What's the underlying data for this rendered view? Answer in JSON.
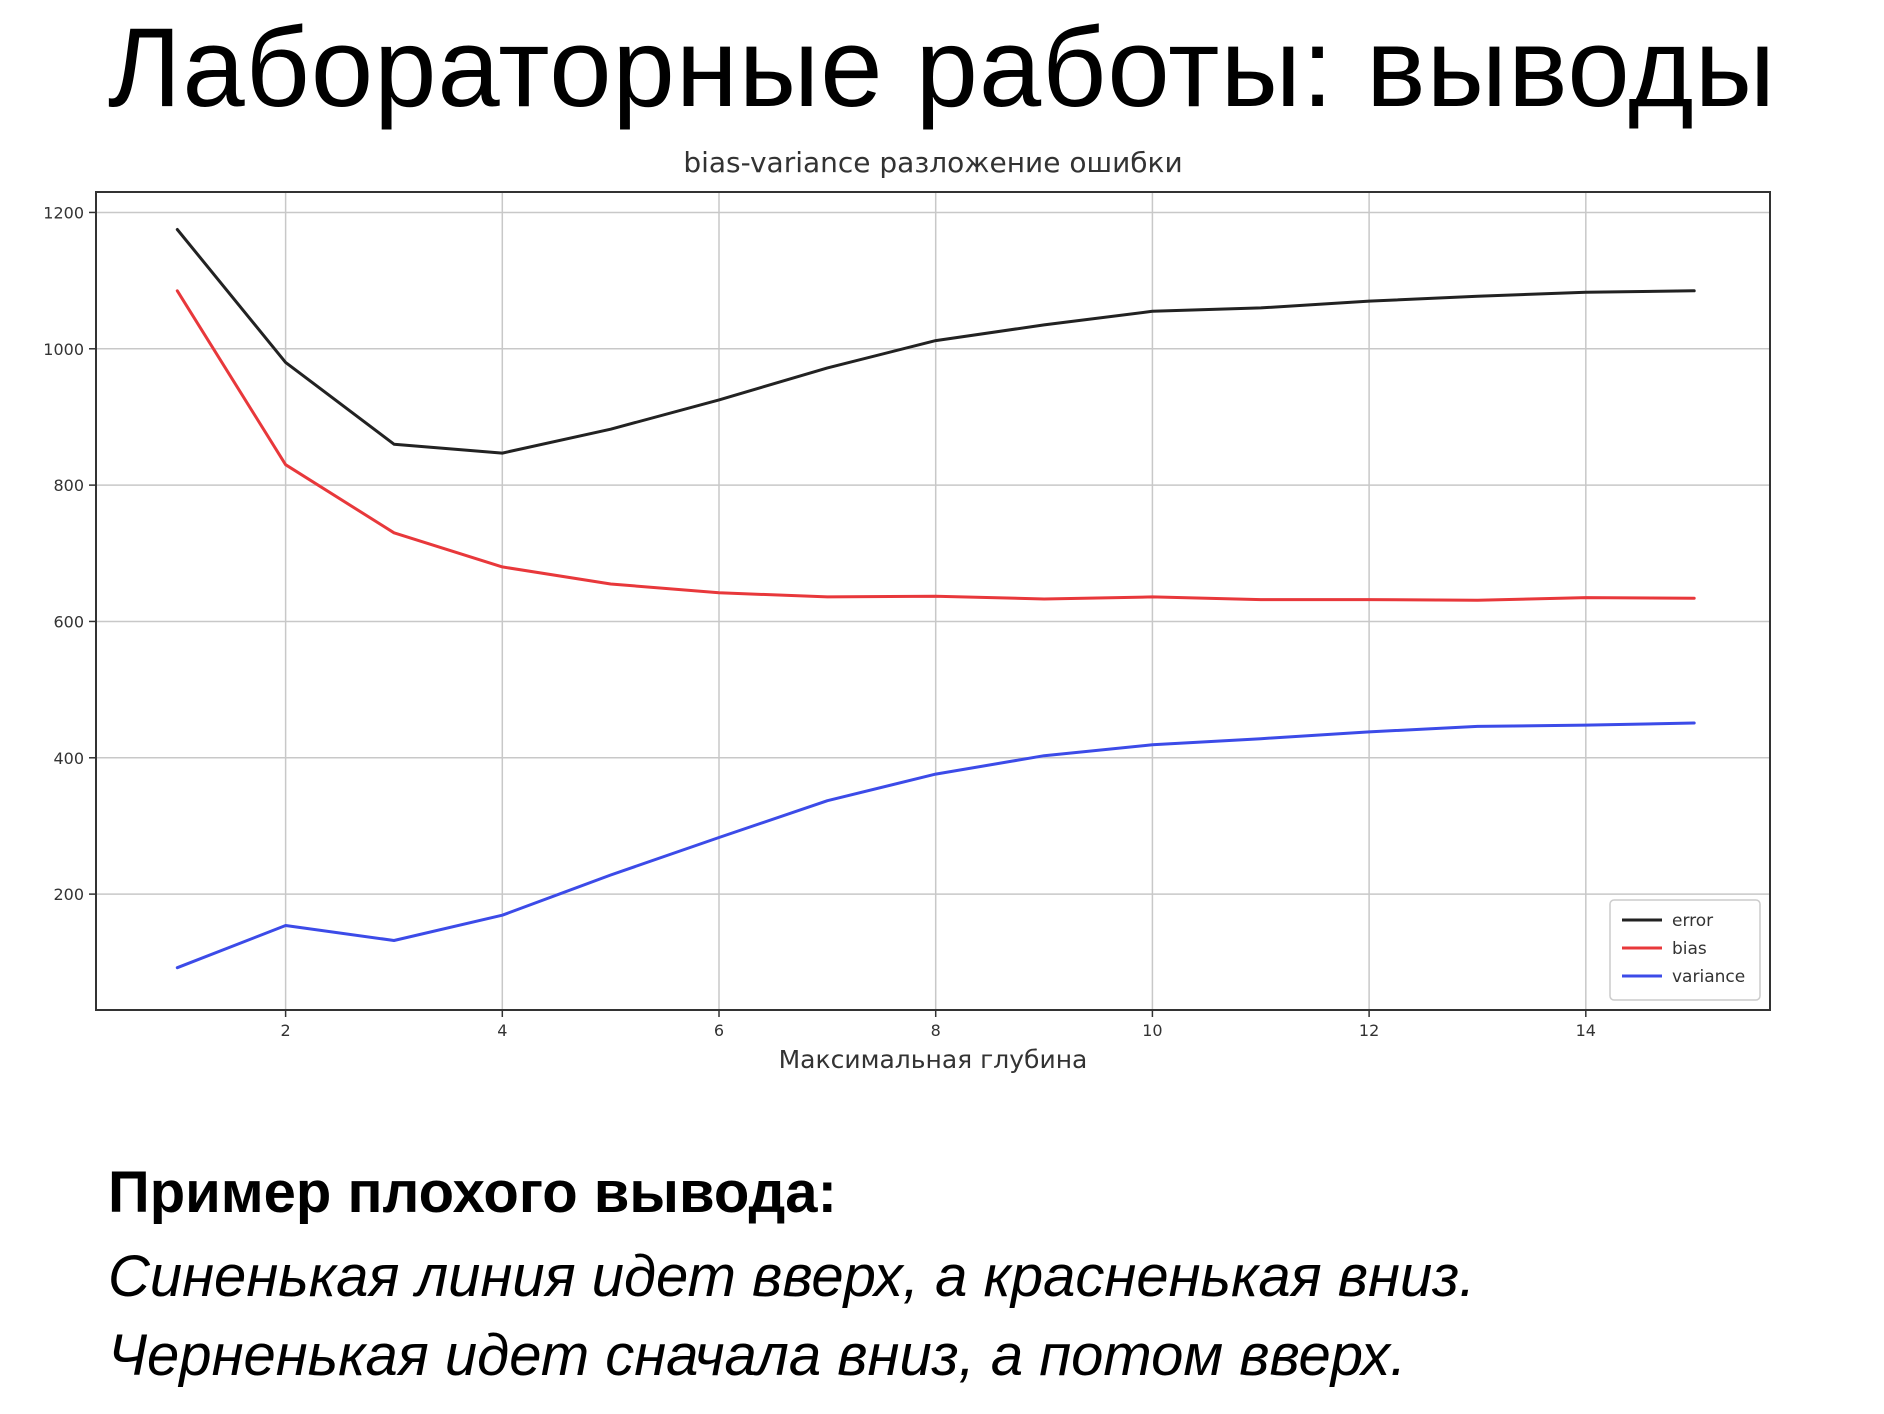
{
  "slide": {
    "title": "Лабораторные работы: выводы"
  },
  "conclusion": {
    "heading": "Пример плохого вывода:",
    "lines": [
      "Синенькая линия идет вверх, а красненькая вниз.",
      "Черненькая идет сначала вниз, а потом вверх."
    ]
  },
  "chart_data": {
    "type": "line",
    "title": "bias-variance разложение ошибки",
    "xlabel": "Максимальная глубина",
    "ylabel": "",
    "x": [
      1,
      2,
      3,
      4,
      5,
      6,
      7,
      8,
      9,
      10,
      11,
      12,
      13,
      14,
      15
    ],
    "xlim": [
      0.25,
      15.7
    ],
    "ylim": [
      30,
      1230
    ],
    "xticks": [
      2,
      4,
      6,
      8,
      10,
      12,
      14
    ],
    "yticks": [
      200,
      400,
      600,
      800,
      1000,
      1200
    ],
    "grid": true,
    "legend_position": "lower-right",
    "series": [
      {
        "name": "error",
        "color": "#222222",
        "values": [
          1175,
          980,
          860,
          847,
          882,
          925,
          972,
          1012,
          1035,
          1055,
          1060,
          1070,
          1077,
          1083,
          1085
        ]
      },
      {
        "name": "bias",
        "color": "#e8383b",
        "values": [
          1085,
          830,
          730,
          680,
          655,
          642,
          636,
          637,
          633,
          636,
          632,
          632,
          631,
          635,
          634
        ]
      },
      {
        "name": "variance",
        "color": "#3c4be8",
        "values": [
          92,
          154,
          132,
          169,
          228,
          283,
          337,
          376,
          403,
          419,
          428,
          438,
          446,
          448,
          451
        ]
      }
    ]
  }
}
